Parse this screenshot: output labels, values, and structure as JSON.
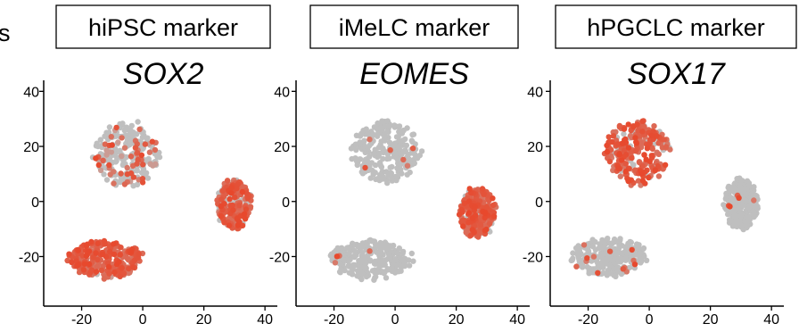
{
  "left_cut_text": "s",
  "chart_data": [
    {
      "type": "scatter",
      "marker_label": "hiPSC marker",
      "title": "SOX2",
      "xticks": [
        -20,
        0,
        20,
        40
      ],
      "yticks": [
        40,
        20,
        0,
        -20
      ],
      "xlim": [
        -33,
        42
      ],
      "ylim": [
        -38,
        44
      ],
      "colors": {
        "low": "#bfbfbf",
        "high": "#e8472b"
      },
      "clusters": [
        {
          "id": "upper",
          "center": [
            -5,
            17
          ],
          "spread": [
            10.5,
            11.5
          ],
          "expression": 0.15
        },
        {
          "id": "right",
          "center": [
            30,
            -1
          ],
          "spread": [
            5.5,
            9
          ],
          "expression": 0.7
        },
        {
          "id": "lower",
          "center": [
            -12,
            -21
          ],
          "spread": [
            12,
            7
          ],
          "expression": 0.95
        }
      ]
    },
    {
      "type": "scatter",
      "marker_label": "iMeLC marker",
      "title": "EOMES",
      "xticks": [
        -20,
        0,
        20,
        40
      ],
      "yticks": [
        40,
        20,
        0,
        -20
      ],
      "xlim": [
        -33,
        42
      ],
      "ylim": [
        -38,
        44
      ],
      "colors": {
        "low": "#bfbfbf",
        "high": "#e8472b"
      },
      "clusters": [
        {
          "id": "upper",
          "center": [
            -3,
            18
          ],
          "spread": [
            11,
            11
          ],
          "expression": 0.02
        },
        {
          "id": "right",
          "center": [
            27,
            -4
          ],
          "spread": [
            6,
            9
          ],
          "expression": 0.85
        },
        {
          "id": "lower",
          "center": [
            -8,
            -21
          ],
          "spread": [
            13,
            7
          ],
          "expression": 0.02
        }
      ]
    },
    {
      "type": "scatter",
      "marker_label": "hPGCLC marker",
      "title": "SOX17",
      "xticks": [
        -20,
        0,
        20,
        40
      ],
      "yticks": [
        40,
        20,
        0,
        -20
      ],
      "xlim": [
        -33,
        42
      ],
      "ylim": [
        -38,
        44
      ],
      "colors": {
        "low": "#bfbfbf",
        "high": "#e8472b"
      },
      "clusters": [
        {
          "id": "upper",
          "center": [
            -4,
            18
          ],
          "spread": [
            10.5,
            11.5
          ],
          "expression": 0.92
        },
        {
          "id": "right",
          "center": [
            30,
            -1
          ],
          "spread": [
            5.5,
            9
          ],
          "expression": 0.01
        },
        {
          "id": "lower",
          "center": [
            -13,
            -20
          ],
          "spread": [
            12,
            7
          ],
          "expression": 0.04
        }
      ]
    }
  ]
}
